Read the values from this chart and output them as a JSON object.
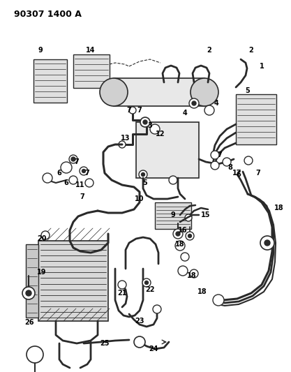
{
  "title": "90307 1400 A",
  "bg_color": "#ffffff",
  "line_color": "#2a2a2a",
  "label_color": "#000000",
  "title_fontsize": 9,
  "label_fontsize": 7,
  "fig_width": 4.17,
  "fig_height": 5.33,
  "dpi": 100
}
